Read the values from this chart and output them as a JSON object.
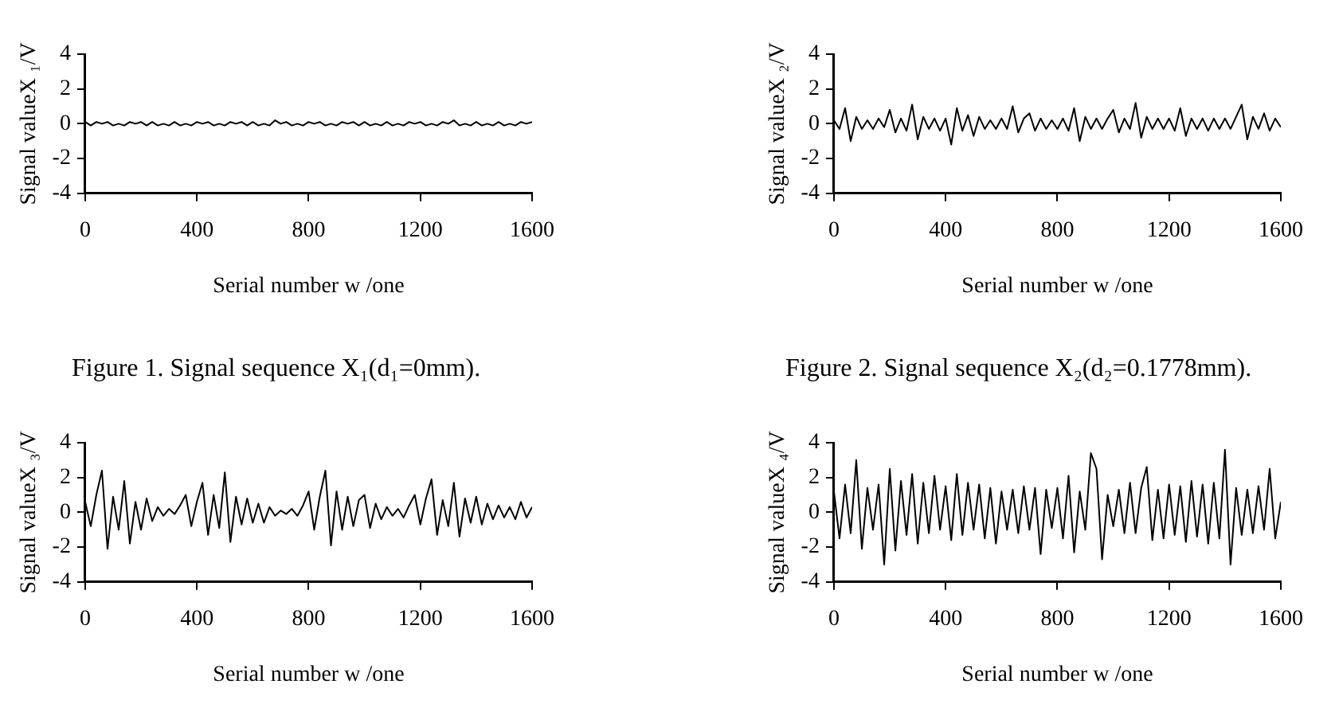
{
  "chart_data": [
    {
      "type": "line",
      "xlabel": "Serial number w /one",
      "ylabel": "Signal valueX ₁/V",
      "xlim": [
        0,
        1600
      ],
      "xticks": [
        0,
        400,
        800,
        1200,
        1600
      ],
      "ylim": [
        -4,
        4
      ],
      "yticks": [
        -4,
        -2,
        0,
        2,
        4
      ],
      "grid": false,
      "annotations": [
        "Figure 1. Signal sequence X₁(d₁=0mm)."
      ],
      "x": [
        0,
        20,
        40,
        60,
        80,
        100,
        120,
        140,
        160,
        180,
        200,
        220,
        240,
        260,
        280,
        300,
        320,
        340,
        360,
        380,
        400,
        420,
        440,
        460,
        480,
        500,
        520,
        540,
        560,
        580,
        600,
        620,
        640,
        660,
        680,
        700,
        720,
        740,
        760,
        780,
        800,
        820,
        840,
        860,
        880,
        900,
        920,
        940,
        960,
        980,
        1000,
        1020,
        1040,
        1060,
        1080,
        1100,
        1120,
        1140,
        1160,
        1180,
        1200,
        1220,
        1240,
        1260,
        1280,
        1300,
        1320,
        1340,
        1360,
        1380,
        1400,
        1420,
        1440,
        1460,
        1480,
        1500,
        1520,
        1540,
        1560,
        1580,
        1600
      ],
      "series": [
        {
          "color": "#000000",
          "values": [
            0.1,
            -0.1,
            0.1,
            0,
            0.1,
            -0.1,
            0,
            -0.1,
            0.1,
            0,
            0.1,
            -0.1,
            0.1,
            -0.1,
            0,
            -0.1,
            0.1,
            -0.1,
            0,
            -0.1,
            0.1,
            0,
            0.1,
            -0.1,
            0,
            -0.1,
            0.1,
            0,
            0.1,
            -0.1,
            0.1,
            -0.1,
            0,
            -0.1,
            0.2,
            0,
            0.1,
            -0.1,
            0,
            -0.1,
            0.1,
            0,
            0.1,
            -0.1,
            0,
            -0.1,
            0.1,
            0,
            0.1,
            -0.1,
            0.1,
            -0.1,
            0,
            -0.1,
            0.1,
            -0.1,
            0,
            -0.1,
            0.1,
            0,
            0.1,
            -0.1,
            0,
            -0.1,
            0.1,
            0,
            0.2,
            -0.1,
            0,
            -0.1,
            0.1,
            -0.1,
            0,
            -0.1,
            0.1,
            -0.1,
            0,
            -0.1,
            0.1,
            0,
            0.1
          ]
        }
      ]
    },
    {
      "type": "line",
      "xlabel": "Serial number w /one",
      "ylabel": "Signal valueX ₂/V",
      "xlim": [
        0,
        1600
      ],
      "xticks": [
        0,
        400,
        800,
        1200,
        1600
      ],
      "ylim": [
        -4,
        4
      ],
      "yticks": [
        -4,
        -2,
        0,
        2,
        4
      ],
      "grid": false,
      "annotations": [
        "Figure 2. Signal sequence X₂(d₂=0.1778mm)."
      ],
      "x": [
        0,
        20,
        40,
        60,
        80,
        100,
        120,
        140,
        160,
        180,
        200,
        220,
        240,
        260,
        280,
        300,
        320,
        340,
        360,
        380,
        400,
        420,
        440,
        460,
        480,
        500,
        520,
        540,
        560,
        580,
        600,
        620,
        640,
        660,
        680,
        700,
        720,
        740,
        760,
        780,
        800,
        820,
        840,
        860,
        880,
        900,
        920,
        940,
        960,
        980,
        1000,
        1020,
        1040,
        1060,
        1080,
        1100,
        1120,
        1140,
        1160,
        1180,
        1200,
        1220,
        1240,
        1260,
        1280,
        1300,
        1320,
        1340,
        1360,
        1380,
        1400,
        1420,
        1440,
        1460,
        1480,
        1500,
        1520,
        1540,
        1560,
        1580,
        1600
      ],
      "series": [
        {
          "color": "#000000",
          "values": [
            0.2,
            -0.3,
            0.9,
            -1.0,
            0.4,
            -0.3,
            0.2,
            -0.3,
            0.3,
            -0.2,
            0.8,
            -0.5,
            0.3,
            -0.4,
            1.1,
            -0.9,
            0.4,
            -0.3,
            0.3,
            -0.4,
            0.3,
            -1.2,
            0.9,
            -0.4,
            0.5,
            -0.7,
            0.4,
            -0.3,
            0.2,
            -0.3,
            0.3,
            -0.3,
            1.0,
            -0.5,
            0.3,
            0.6,
            -0.4,
            0.3,
            -0.3,
            0.2,
            -0.3,
            0.3,
            -0.4,
            0.9,
            -1.0,
            0.4,
            -0.3,
            0.3,
            -0.3,
            0.3,
            0.8,
            -0.5,
            0.3,
            -0.3,
            1.2,
            -0.8,
            0.4,
            -0.3,
            0.3,
            -0.3,
            0.3,
            -0.4,
            0.9,
            -0.7,
            0.3,
            -0.3,
            0.3,
            -0.4,
            0.3,
            -0.3,
            0.3,
            -0.3,
            0.4,
            1.1,
            -0.9,
            0.4,
            -0.3,
            0.6,
            -0.4,
            0.3,
            -0.2
          ]
        }
      ]
    },
    {
      "type": "line",
      "xlabel": "Serial number w /one",
      "ylabel": "Signal valueX ₃/V",
      "xlim": [
        0,
        1600
      ],
      "xticks": [
        0,
        400,
        800,
        1200,
        1600
      ],
      "ylim": [
        -4,
        4
      ],
      "yticks": [
        -4,
        -2,
        0,
        2,
        4
      ],
      "grid": false,
      "x": [
        0,
        20,
        40,
        60,
        80,
        100,
        120,
        140,
        160,
        180,
        200,
        220,
        240,
        260,
        280,
        300,
        320,
        340,
        360,
        380,
        400,
        420,
        440,
        460,
        480,
        500,
        520,
        540,
        560,
        580,
        600,
        620,
        640,
        660,
        680,
        700,
        720,
        740,
        760,
        780,
        800,
        820,
        840,
        860,
        880,
        900,
        920,
        940,
        960,
        980,
        1000,
        1020,
        1040,
        1060,
        1080,
        1100,
        1120,
        1140,
        1160,
        1180,
        1200,
        1220,
        1240,
        1260,
        1280,
        1300,
        1320,
        1340,
        1360,
        1380,
        1400,
        1420,
        1440,
        1460,
        1480,
        1500,
        1520,
        1540,
        1560,
        1580,
        1600
      ],
      "series": [
        {
          "color": "#000000",
          "values": [
            0.6,
            -0.8,
            1.0,
            2.4,
            -2.1,
            0.9,
            -1.0,
            1.8,
            -1.8,
            0.6,
            -1.0,
            0.8,
            -0.5,
            0.3,
            -0.2,
            0.2,
            -0.1,
            0.4,
            1.0,
            -0.8,
            0.6,
            1.7,
            -1.3,
            1.0,
            -0.9,
            2.3,
            -1.7,
            0.9,
            -0.7,
            0.8,
            -0.6,
            0.5,
            -0.6,
            0.3,
            -0.2,
            0.1,
            -0.1,
            0.2,
            -0.2,
            0.4,
            1.2,
            -1.0,
            0.9,
            2.4,
            -1.9,
            1.2,
            -1.0,
            0.9,
            -0.8,
            0.7,
            1.0,
            -0.9,
            0.5,
            -0.4,
            0.3,
            -0.2,
            0.2,
            -0.3,
            0.4,
            1.0,
            -0.7,
            0.8,
            1.9,
            -1.3,
            0.7,
            -0.8,
            1.7,
            -1.4,
            0.8,
            -0.6,
            0.9,
            -0.7,
            0.5,
            -0.4,
            0.4,
            -0.3,
            0.3,
            -0.4,
            0.6,
            -0.3,
            0.3
          ]
        }
      ]
    },
    {
      "type": "line",
      "xlabel": "Serial number w /one",
      "ylabel": "Signal valueX ₄/V",
      "xlim": [
        0,
        1600
      ],
      "xticks": [
        0,
        400,
        800,
        1200,
        1600
      ],
      "ylim": [
        -4,
        4
      ],
      "yticks": [
        -4,
        -2,
        0,
        2,
        4
      ],
      "grid": false,
      "x": [
        0,
        20,
        40,
        60,
        80,
        100,
        120,
        140,
        160,
        180,
        200,
        220,
        240,
        260,
        280,
        300,
        320,
        340,
        360,
        380,
        400,
        420,
        440,
        460,
        480,
        500,
        520,
        540,
        560,
        580,
        600,
        620,
        640,
        660,
        680,
        700,
        720,
        740,
        760,
        780,
        800,
        820,
        840,
        860,
        880,
        900,
        920,
        940,
        960,
        980,
        1000,
        1020,
        1040,
        1060,
        1080,
        1100,
        1120,
        1140,
        1160,
        1180,
        1200,
        1220,
        1240,
        1260,
        1280,
        1300,
        1320,
        1340,
        1360,
        1380,
        1400,
        1420,
        1440,
        1460,
        1480,
        1500,
        1520,
        1540,
        1560,
        1580,
        1600
      ],
      "series": [
        {
          "color": "#000000",
          "values": [
            1.2,
            -1.5,
            1.6,
            -1.2,
            3.0,
            -2.1,
            1.4,
            -1.0,
            1.6,
            -3.0,
            2.5,
            -2.2,
            1.8,
            -1.3,
            2.2,
            -1.8,
            1.7,
            -1.2,
            2.1,
            -1.0,
            1.5,
            -1.6,
            2.2,
            -1.3,
            1.7,
            -1.0,
            1.6,
            -1.5,
            1.4,
            -1.8,
            1.2,
            -1.0,
            1.3,
            -1.2,
            1.5,
            -1.0,
            1.4,
            -2.4,
            1.3,
            -0.9,
            1.4,
            -1.5,
            2.1,
            -2.3,
            1.2,
            -1.0,
            3.4,
            2.5,
            -2.7,
            1.0,
            -0.8,
            1.3,
            -1.2,
            1.7,
            -1.2,
            1.4,
            2.6,
            -1.6,
            1.3,
            -1.5,
            1.6,
            -1.3,
            1.5,
            -1.7,
            1.8,
            -1.4,
            1.6,
            -1.8,
            1.7,
            -1.5,
            3.6,
            -3.0,
            1.4,
            -1.3,
            1.3,
            -1.2,
            1.5,
            -1.0,
            2.5,
            -1.5,
            0.6
          ]
        }
      ]
    }
  ]
}
